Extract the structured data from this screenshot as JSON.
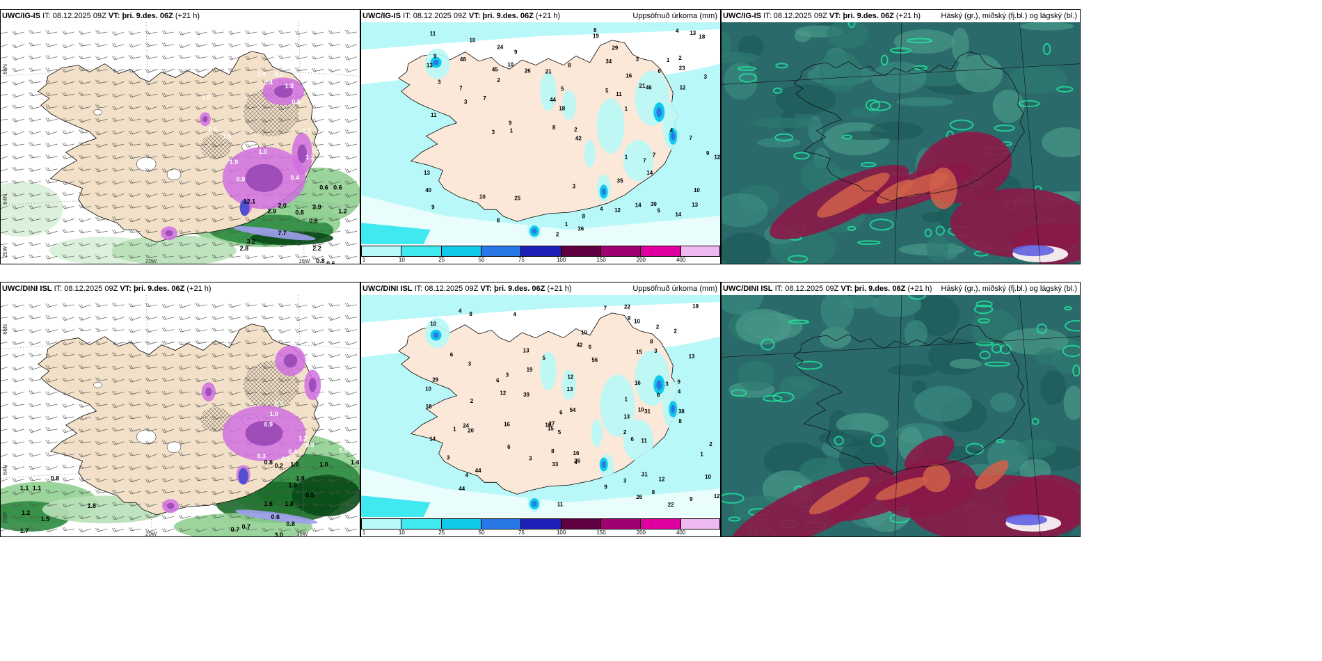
{
  "rows": [
    {
      "model_label": "UWC/IG-IS",
      "it_label": "IT:",
      "it_value": "08.12.2025 09Z",
      "vt_label": "VT:",
      "vt_value": "þri. 9.des. 06Z",
      "lead": "(+21 h)"
    },
    {
      "model_label": "UWC/DINI ISL",
      "it_label": "IT:",
      "it_value": "08.12.2025 09Z",
      "vt_label": "VT:",
      "vt_value": "þri. 9.des. 06Z",
      "lead": "(+21 h)"
    }
  ],
  "precip_title": "Uppsöfnuð úrkoma (mm)",
  "cloud_title": "Háský (gr.), miðský (fj.bl.) og lágský (bl.)",
  "axis_labels": {
    "lat66": "66N",
    "lat64": "64N",
    "lon20": "20W",
    "lon15": "15W",
    "lon25": "25W"
  },
  "colorbar": {
    "ticks": [
      "1",
      "10",
      "25",
      "50",
      "75",
      "100",
      "150",
      "200",
      "400"
    ],
    "colors": [
      "#b8f8f8",
      "#40e8f0",
      "#10c8e8",
      "#2878e8",
      "#2020b8",
      "#600040",
      "#a00070",
      "#e000a0",
      "#f0b8f0"
    ]
  },
  "precip_values_top": [
    "3",
    "2",
    "1",
    "1",
    "1",
    "2",
    "1",
    "1",
    "2",
    "12",
    "9",
    "10",
    "21",
    "10",
    "11",
    "8",
    "9",
    "21",
    "14",
    "4",
    "5",
    "7",
    "18",
    "3",
    "3",
    "7",
    "23",
    "29",
    "10",
    "3",
    "13",
    "12",
    "13",
    "7",
    "9",
    "24",
    "26",
    "34",
    "19",
    "40",
    "46",
    "45",
    "44",
    "39",
    "8",
    "3",
    "13",
    "4",
    "10",
    "7",
    "5",
    "11",
    "8",
    "7",
    "8",
    "9",
    "9",
    "14",
    "14",
    "5",
    "6",
    "11",
    "12",
    "18",
    "36",
    "48",
    "42",
    "8",
    "16",
    "4",
    "2",
    "13",
    "25",
    "35",
    "3"
  ],
  "precip_values_bottom": [
    "2",
    "2",
    "3",
    "1",
    "3",
    "3",
    "9",
    "12",
    "10",
    "8",
    "10",
    "13",
    "14",
    "11",
    "6",
    "9",
    "2",
    "1",
    "2",
    "5",
    "5",
    "18",
    "16",
    "9",
    "4",
    "4",
    "3",
    "15",
    "12",
    "20",
    "13",
    "7",
    "29",
    "31",
    "39",
    "44",
    "56",
    "54",
    "31",
    "26",
    "27",
    "16",
    "10",
    "11",
    "10",
    "13",
    "19",
    "3",
    "6",
    "8",
    "8",
    "6",
    "13",
    "12",
    "10",
    "12",
    "10",
    "4",
    "6",
    "36",
    "38",
    "33",
    "42",
    "9",
    "4",
    "3",
    "1",
    "3",
    "16",
    "10",
    "4",
    "2",
    "24",
    "22",
    "19",
    "44",
    "22",
    "15",
    "8",
    "6",
    "6",
    "6",
    "8"
  ],
  "wind_values_top": [
    "12.1",
    "7.7",
    "2.9",
    "2.0",
    "0.6",
    "0.6",
    "2.9",
    "0.8",
    "0.8",
    "1.2",
    "3.2",
    "2.8",
    "2.2",
    "0.8",
    "0.6",
    "1.5",
    "1.9",
    "0.9",
    "0.6",
    "1.0",
    "1.5",
    "1.3",
    "0.4",
    "0.3",
    "2.4",
    "0.5",
    "0.7",
    "1.0",
    "1.2",
    "0.4"
  ],
  "wind_values_bottom": [
    "0.5",
    "1.4",
    "0.8",
    "1.1",
    "1.1",
    "1.2",
    "1.5",
    "1.7",
    "1.8",
    "0.7",
    "0.7",
    "0.6",
    "0.8",
    "3.0",
    "1.0",
    "1.0",
    "1.9",
    "1.9",
    "1.6",
    "1.8",
    "0.5",
    "0.3",
    "0.8",
    "0.2",
    "0.3",
    "0.4",
    "0.9",
    "1.0",
    "0.9",
    "1.2",
    "0.8"
  ]
}
